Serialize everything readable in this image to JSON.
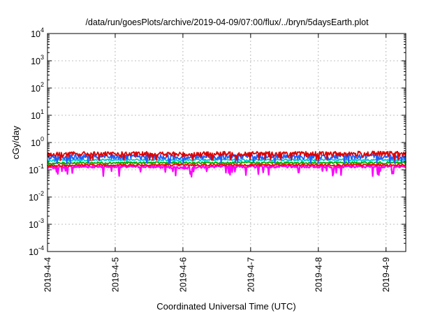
{
  "chart_data": {
    "type": "line",
    "title": "/data/run/goesPlots/archive/2019-04-09/07:00/flux/../bryn/5daysEarth.plot",
    "xlabel": "Coordinated Universal Time (UTC)",
    "ylabel": "cGy/day",
    "yscale": "log",
    "ylim": [
      0.0001,
      10000
    ],
    "y_ticks": [
      {
        "base": "10",
        "exp": "-4",
        "value": 0.0001
      },
      {
        "base": "10",
        "exp": "-3",
        "value": 0.001
      },
      {
        "base": "10",
        "exp": "-2",
        "value": 0.01
      },
      {
        "base": "10",
        "exp": "-1",
        "value": 0.1
      },
      {
        "base": "10",
        "exp": "0",
        "value": 1
      },
      {
        "base": "10",
        "exp": "1",
        "value": 10
      },
      {
        "base": "10",
        "exp": "2",
        "value": 100
      },
      {
        "base": "10",
        "exp": "3",
        "value": 1000
      },
      {
        "base": "10",
        "exp": "4",
        "value": 10000
      }
    ],
    "xlim": [
      "2019-04-04 00:00",
      "2019-04-09 07:00"
    ],
    "x_ticks": [
      {
        "label": "2019-4-4",
        "time": "2019-04-04 00:00"
      },
      {
        "label": "2019-4-5",
        "time": "2019-04-05 00:00"
      },
      {
        "label": "2019-4-6",
        "time": "2019-04-06 00:00"
      },
      {
        "label": "2019-4-7",
        "time": "2019-04-07 00:00"
      },
      {
        "label": "2019-4-8",
        "time": "2019-04-08 00:00"
      },
      {
        "label": "2019-4-9",
        "time": "2019-04-09 00:00"
      }
    ],
    "grid": true,
    "legend": false,
    "series": [
      {
        "color": "#ff00ff",
        "x": [
          "2019-04-04 00:00",
          "2019-04-04 12:00",
          "2019-04-05 00:00",
          "2019-04-05 12:00",
          "2019-04-06 00:00",
          "2019-04-06 12:00",
          "2019-04-07 00:00",
          "2019-04-07 12:00",
          "2019-04-08 00:00",
          "2019-04-08 12:00",
          "2019-04-09 00:00",
          "2019-04-09 07:00"
        ],
        "y": [
          0.12,
          0.13,
          0.13,
          0.13,
          0.12,
          0.13,
          0.13,
          0.13,
          0.13,
          0.13,
          0.13,
          0.13
        ]
      },
      {
        "color": "#ff0000",
        "x": [
          "2019-04-04 00:00",
          "2019-04-04 12:00",
          "2019-04-05 00:00",
          "2019-04-05 12:00",
          "2019-04-06 00:00",
          "2019-04-06 12:00",
          "2019-04-07 00:00",
          "2019-04-07 12:00",
          "2019-04-08 00:00",
          "2019-04-08 12:00",
          "2019-04-09 00:00",
          "2019-04-09 07:00"
        ],
        "y": [
          0.14,
          0.15,
          0.15,
          0.15,
          0.15,
          0.15,
          0.15,
          0.15,
          0.15,
          0.15,
          0.15,
          0.15
        ]
      },
      {
        "color": "#00aa00",
        "x": [
          "2019-04-04 00:00",
          "2019-04-04 12:00",
          "2019-04-05 00:00",
          "2019-04-05 12:00",
          "2019-04-06 00:00",
          "2019-04-06 12:00",
          "2019-04-07 00:00",
          "2019-04-07 12:00",
          "2019-04-08 00:00",
          "2019-04-08 12:00",
          "2019-04-09 00:00",
          "2019-04-09 07:00"
        ],
        "y": [
          0.17,
          0.18,
          0.18,
          0.18,
          0.18,
          0.18,
          0.18,
          0.18,
          0.18,
          0.18,
          0.18,
          0.18
        ]
      },
      {
        "color": "#00cccc",
        "x": [
          "2019-04-04 00:00",
          "2019-04-04 12:00",
          "2019-04-05 00:00",
          "2019-04-05 12:00",
          "2019-04-06 00:00",
          "2019-04-06 12:00",
          "2019-04-07 00:00",
          "2019-04-07 12:00",
          "2019-04-08 00:00",
          "2019-04-08 12:00",
          "2019-04-09 00:00",
          "2019-04-09 07:00"
        ],
        "y": [
          0.22,
          0.23,
          0.23,
          0.23,
          0.23,
          0.23,
          0.23,
          0.23,
          0.23,
          0.23,
          0.23,
          0.23
        ]
      },
      {
        "color": "#1f5fff",
        "x": [
          "2019-04-04 00:00",
          "2019-04-04 12:00",
          "2019-04-05 00:00",
          "2019-04-05 12:00",
          "2019-04-06 00:00",
          "2019-04-06 12:00",
          "2019-04-07 00:00",
          "2019-04-07 12:00",
          "2019-04-08 00:00",
          "2019-04-08 12:00",
          "2019-04-09 00:00",
          "2019-04-09 07:00"
        ],
        "y": [
          0.28,
          0.3,
          0.3,
          0.3,
          0.29,
          0.3,
          0.31,
          0.3,
          0.3,
          0.31,
          0.3,
          0.3
        ]
      },
      {
        "color": "#dd0000",
        "x": [
          "2019-04-04 00:00",
          "2019-04-04 12:00",
          "2019-04-05 00:00",
          "2019-04-05 12:00",
          "2019-04-06 00:00",
          "2019-04-06 12:00",
          "2019-04-07 00:00",
          "2019-04-07 12:00",
          "2019-04-08 00:00",
          "2019-04-08 12:00",
          "2019-04-09 00:00",
          "2019-04-09 07:00"
        ],
        "y": [
          0.36,
          0.38,
          0.37,
          0.38,
          0.37,
          0.38,
          0.39,
          0.38,
          0.38,
          0.39,
          0.39,
          0.38
        ]
      }
    ]
  }
}
